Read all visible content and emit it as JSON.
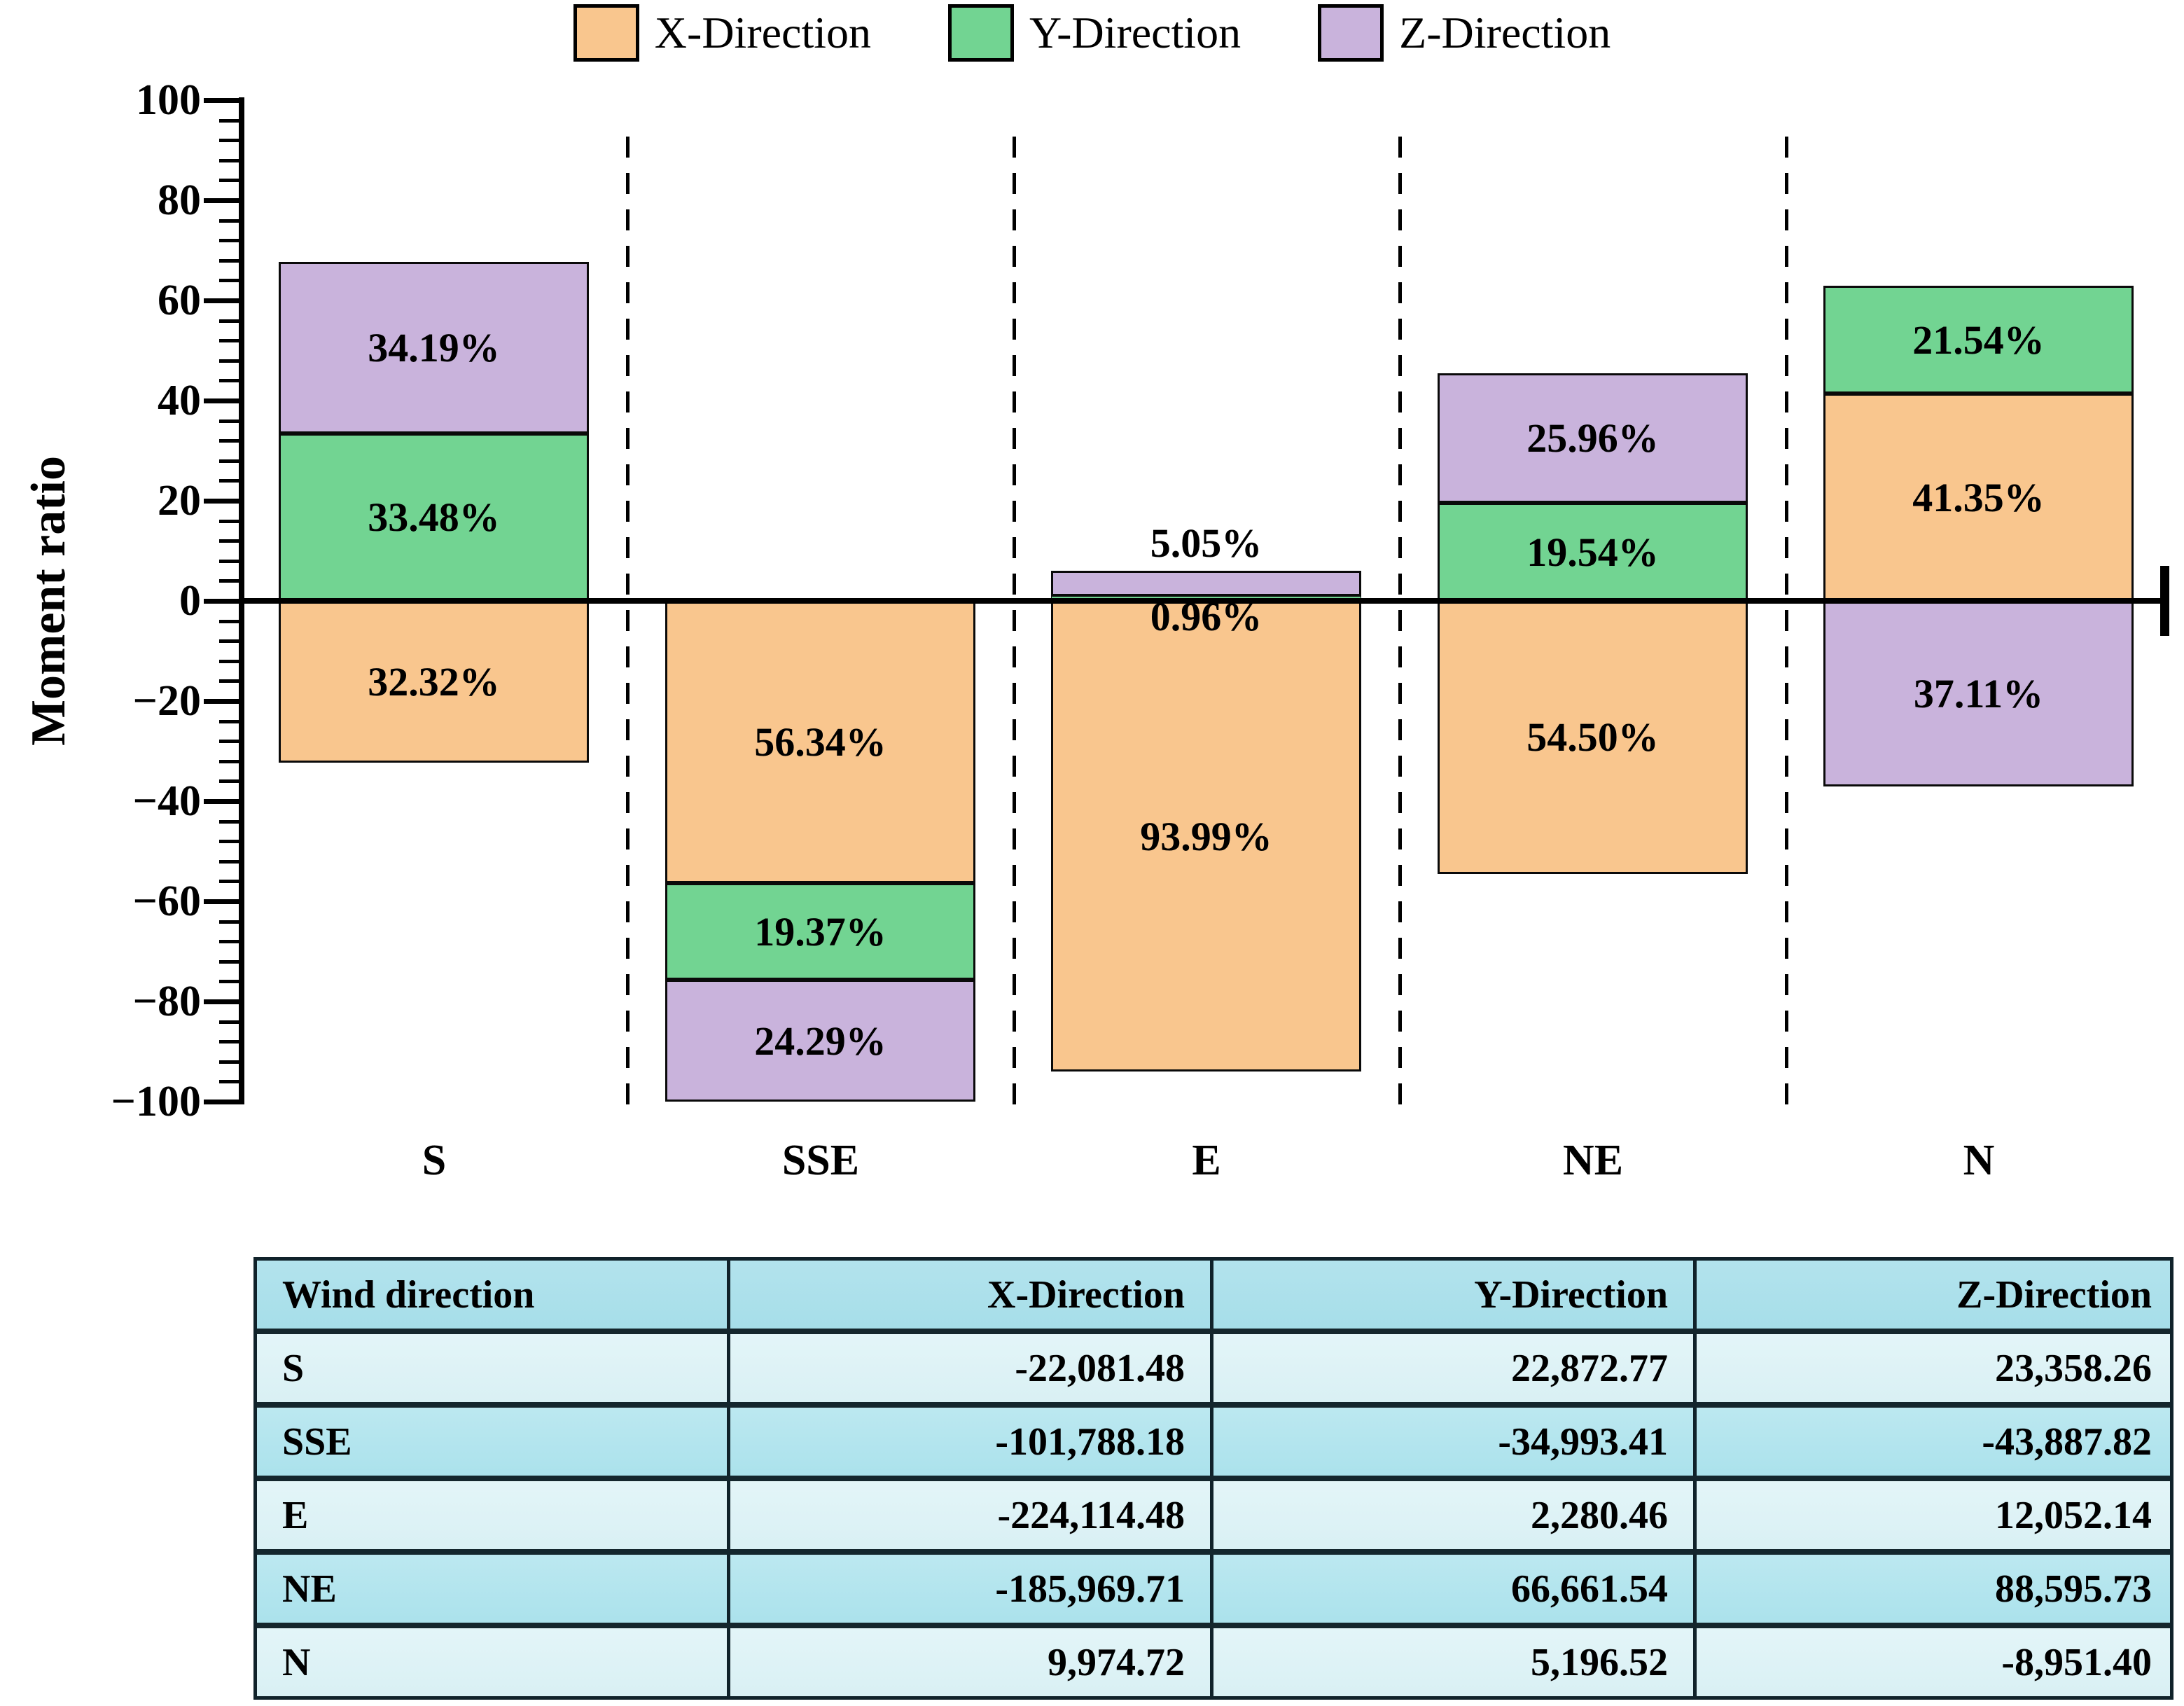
{
  "chart_data": {
    "type": "bar",
    "stacked": true,
    "title": "",
    "xlabel": "",
    "ylabel": "Moment ratio",
    "ylim": [
      -100,
      100
    ],
    "grid": false,
    "legend_position": "top",
    "categories": [
      "S",
      "SSE",
      "E",
      "NE",
      "N"
    ],
    "series": [
      {
        "name": "X-Direction",
        "color": "#f9c68e",
        "values": [
          -32.32,
          -56.34,
          -93.99,
          -54.5,
          41.35
        ],
        "labels": [
          "32.32%",
          "56.34%",
          "93.99%",
          "54.50%",
          "41.35%"
        ]
      },
      {
        "name": "Y-Direction",
        "color": "#72d492",
        "values": [
          33.48,
          -19.37,
          0.96,
          19.54,
          21.54
        ],
        "labels": [
          "33.48%",
          "19.37%",
          "0.96%",
          "19.54%",
          "21.54%"
        ]
      },
      {
        "name": "Z-Direction",
        "color": "#c9b3dc",
        "values": [
          34.19,
          -24.29,
          5.05,
          25.96,
          -37.11
        ],
        "labels": [
          "34.19%",
          "24.29%",
          "5.05%",
          "25.96%",
          "37.11%"
        ]
      }
    ],
    "yticks": [
      {
        "v": 100,
        "label": "100"
      },
      {
        "v": 80,
        "label": "80"
      },
      {
        "v": 60,
        "label": "60"
      },
      {
        "v": 40,
        "label": "40"
      },
      {
        "v": 20,
        "label": "20"
      },
      {
        "v": 0,
        "label": "0"
      },
      {
        "v": -20,
        "label": "−20"
      },
      {
        "v": -40,
        "label": "−40"
      },
      {
        "v": -60,
        "label": "−60"
      },
      {
        "v": -80,
        "label": "−80"
      },
      {
        "v": -100,
        "label": "−100"
      }
    ]
  },
  "legend": {
    "items": [
      {
        "label": "X-Direction",
        "color": "#f9c68e"
      },
      {
        "label": "Y-Direction",
        "color": "#72d492"
      },
      {
        "label": "Z-Direction",
        "color": "#c9b3dc"
      }
    ]
  },
  "table": {
    "headers": [
      "Wind direction",
      "X-Direction",
      "Y-Direction",
      "Z-Direction"
    ],
    "rows": [
      [
        "S",
        "-22,081.48",
        "22,872.77",
        "23,358.26"
      ],
      [
        "SSE",
        "-101,788.18",
        "-34,993.41",
        "-43,887.82"
      ],
      [
        "E",
        "-224,114.48",
        "2,280.46",
        "12,052.14"
      ],
      [
        "NE",
        "-185,969.71",
        "66,661.54",
        "88,595.73"
      ],
      [
        "N",
        "9,974.72",
        "5,196.52",
        "-8,951.40"
      ]
    ],
    "header_bg": "#a6dee9",
    "row_dark_bg": "#abe2ec",
    "row_light_bg": "#d9f0f4"
  },
  "colors": {
    "axis": "#000000",
    "x_series": "#f9c68e",
    "y_series": "#72d492",
    "z_series": "#c9b3dc"
  }
}
